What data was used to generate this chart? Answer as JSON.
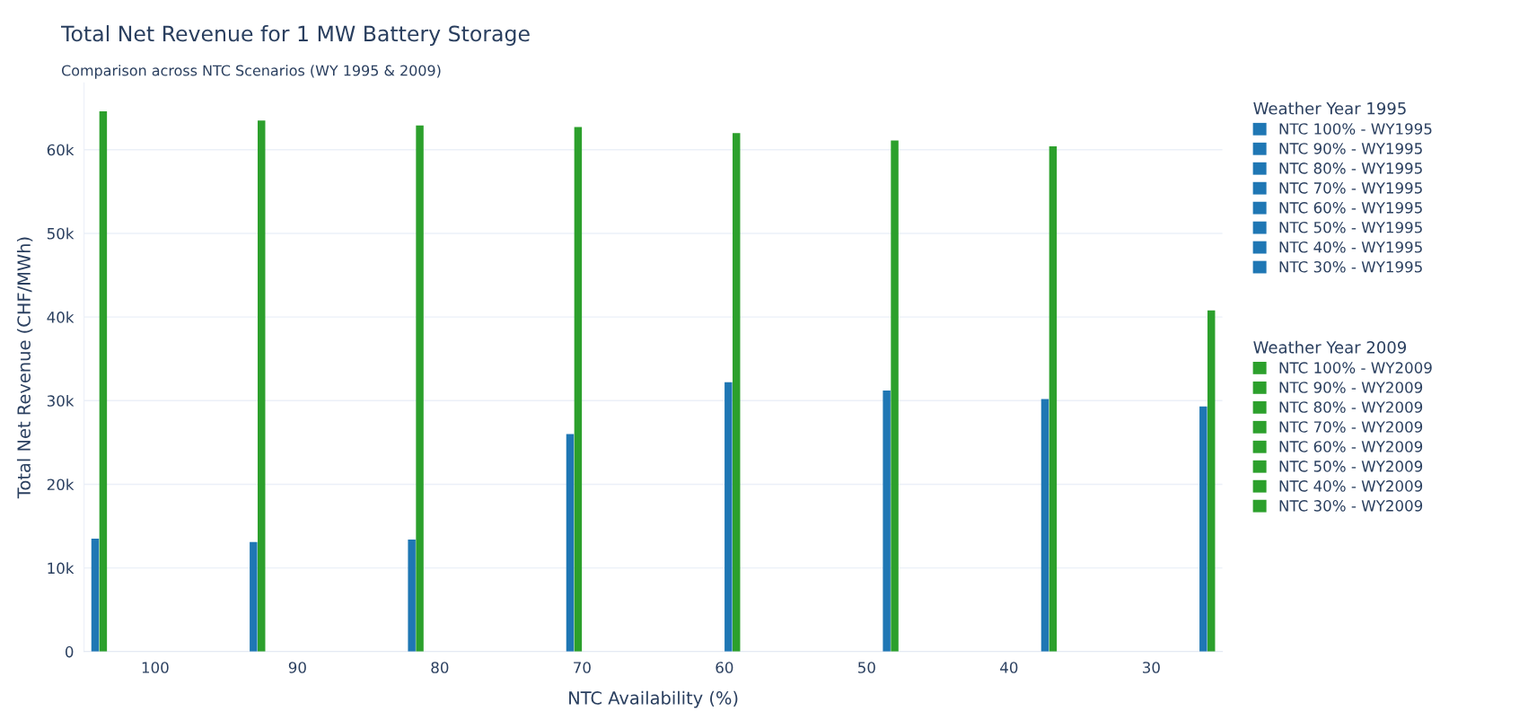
{
  "chart_data": {
    "type": "bar",
    "title": "Total Net Revenue for 1 MW Battery Storage",
    "subtitle": "Comparison across NTC Scenarios (WY 1995 & 2009)",
    "xlabel": "NTC Availability (%)",
    "ylabel": "Total Net Revenue (CHF/MWh)",
    "legend_title": "Weather Year 1995",
    "annotations": [
      "Weather Year 2009"
    ],
    "categories": [
      "100",
      "90",
      "80",
      "70",
      "60",
      "50",
      "40",
      "30"
    ],
    "series": [
      {
        "name": "NTC 100% - WY1995",
        "color": "#1f77b4",
        "values": [
          13500,
          null,
          null,
          null,
          null,
          null,
          null,
          null
        ]
      },
      {
        "name": "NTC 100% - WY2009",
        "color": "#2ca02c",
        "values": [
          64600,
          null,
          null,
          null,
          null,
          null,
          null,
          null
        ]
      },
      {
        "name": "NTC 90% - WY1995",
        "color": "#1f77b4",
        "values": [
          null,
          13100,
          null,
          null,
          null,
          null,
          null,
          null
        ]
      },
      {
        "name": "NTC 90% - WY2009",
        "color": "#2ca02c",
        "values": [
          null,
          63500,
          null,
          null,
          null,
          null,
          null,
          null
        ]
      },
      {
        "name": "NTC 80% - WY1995",
        "color": "#1f77b4",
        "values": [
          null,
          null,
          13400,
          null,
          null,
          null,
          null,
          null
        ]
      },
      {
        "name": "NTC 80% - WY2009",
        "color": "#2ca02c",
        "values": [
          null,
          null,
          62900,
          null,
          null,
          null,
          null,
          null
        ]
      },
      {
        "name": "NTC 70% - WY1995",
        "color": "#1f77b4",
        "values": [
          null,
          null,
          null,
          26000,
          null,
          null,
          null,
          null
        ]
      },
      {
        "name": "NTC 70% - WY2009",
        "color": "#2ca02c",
        "values": [
          null,
          null,
          null,
          62700,
          null,
          null,
          null,
          null
        ]
      },
      {
        "name": "NTC 60% - WY1995",
        "color": "#1f77b4",
        "values": [
          null,
          null,
          null,
          null,
          32200,
          null,
          null,
          null
        ]
      },
      {
        "name": "NTC 60% - WY2009",
        "color": "#2ca02c",
        "values": [
          null,
          null,
          null,
          null,
          62000,
          null,
          null,
          null
        ]
      },
      {
        "name": "NTC 50% - WY1995",
        "color": "#1f77b4",
        "values": [
          null,
          null,
          null,
          null,
          null,
          31200,
          null,
          null
        ]
      },
      {
        "name": "NTC 50% - WY2009",
        "color": "#2ca02c",
        "values": [
          null,
          null,
          null,
          null,
          null,
          61100,
          null,
          null
        ]
      },
      {
        "name": "NTC 40% - WY1995",
        "color": "#1f77b4",
        "values": [
          null,
          null,
          null,
          null,
          null,
          null,
          30200,
          null
        ]
      },
      {
        "name": "NTC 40% - WY2009",
        "color": "#2ca02c",
        "values": [
          null,
          null,
          null,
          null,
          null,
          null,
          60400,
          null
        ]
      },
      {
        "name": "NTC 30% - WY1995",
        "color": "#1f77b4",
        "values": [
          null,
          null,
          null,
          null,
          null,
          null,
          null,
          29300
        ]
      },
      {
        "name": "NTC 30% - WY2009",
        "color": "#2ca02c",
        "values": [
          null,
          null,
          null,
          null,
          null,
          null,
          null,
          40800
        ]
      }
    ],
    "ylim": [
      0,
      68000
    ],
    "yticks": [
      0,
      {
        "value": 10000,
        "label": "10k"
      },
      {
        "value": 20000,
        "label": "20k"
      },
      {
        "value": 30000,
        "label": "30k"
      },
      {
        "value": 40000,
        "label": "40k"
      },
      {
        "value": 50000,
        "label": "50k"
      },
      {
        "value": 60000,
        "label": "60k"
      }
    ],
    "grid": "y",
    "legend": "right"
  }
}
